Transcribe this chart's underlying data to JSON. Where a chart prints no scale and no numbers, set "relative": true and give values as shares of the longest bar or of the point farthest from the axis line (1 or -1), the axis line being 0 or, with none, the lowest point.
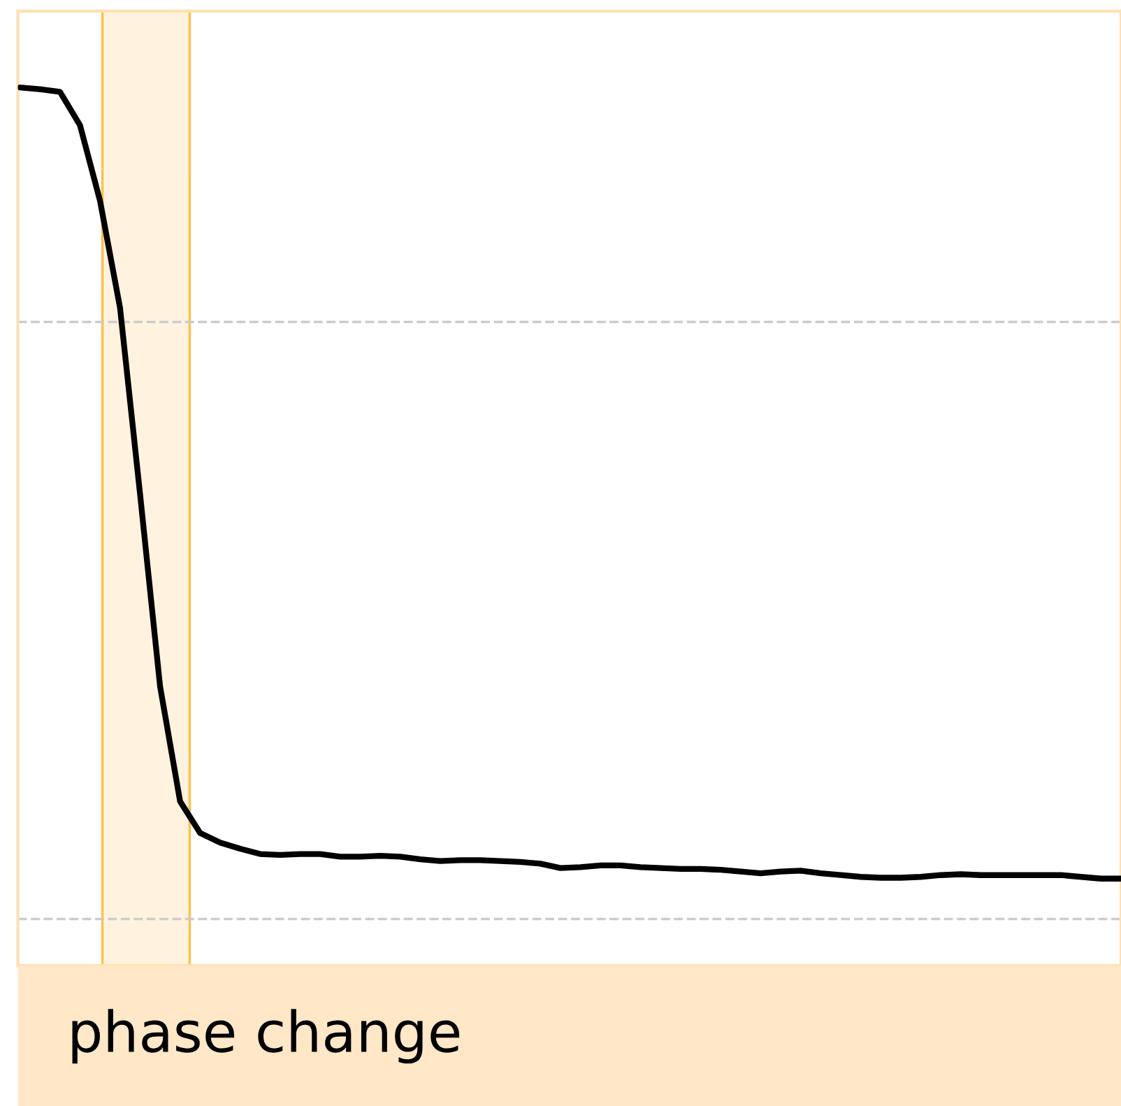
{
  "chart_data": {
    "type": "line",
    "relative": true,
    "categories": [
      null,
      null,
      null,
      null,
      null,
      null,
      null,
      null,
      null,
      null,
      null,
      null,
      null,
      null,
      null,
      null,
      null,
      null,
      null,
      null,
      null,
      null,
      null,
      null,
      null,
      null,
      null,
      null,
      null,
      null,
      null,
      null,
      null,
      null,
      null,
      null,
      null,
      null,
      null,
      null,
      null,
      null,
      null,
      null,
      null,
      null,
      null,
      null,
      null,
      null,
      null,
      null,
      null,
      null,
      null,
      null
    ],
    "series": [
      {
        "color": "#000000",
        "values": [
          1.0,
          0.998,
          0.995,
          0.957,
          0.871,
          0.749,
          0.537,
          0.318,
          0.187,
          0.151,
          0.14,
          0.133,
          0.127,
          0.126,
          0.127,
          0.127,
          0.124,
          0.124,
          0.125,
          0.124,
          0.121,
          0.119,
          0.12,
          0.12,
          0.119,
          0.118,
          0.116,
          0.111,
          0.112,
          0.114,
          0.114,
          0.112,
          0.111,
          0.11,
          0.11,
          0.109,
          0.107,
          0.105,
          0.107,
          0.108,
          0.105,
          0.103,
          0.101,
          0.1,
          0.1,
          0.101,
          0.103,
          0.104,
          0.103,
          0.103,
          0.103,
          0.103,
          0.103,
          0.101,
          0.099,
          0.099
        ]
      }
    ],
    "annotations": [
      "phase change"
    ],
    "ref_lines": [
      {
        "axis": "y",
        "value": 0.733,
        "color": "#cccccc",
        "line_style": "dashed"
      },
      {
        "axis": "y",
        "value": 0.053,
        "color": "#cccccc",
        "line_style": "dashed"
      }
    ],
    "legend": false,
    "marker": "none",
    "line_style": "solid"
  }
}
